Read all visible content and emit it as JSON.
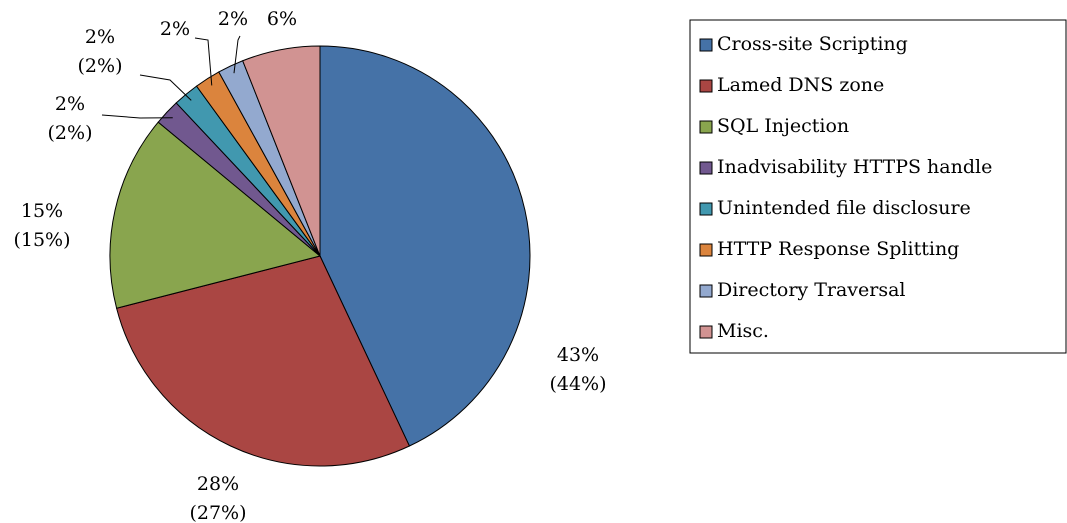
{
  "chart_data": {
    "type": "pie",
    "categories": [
      "Cross-site Scripting",
      "Lamed DNS zone",
      "SQL Injection",
      "Inadvisability HTTPS handle",
      "Unintended file disclosure",
      "HTTP Response Splitting",
      "Directory Traversal",
      "Misc."
    ],
    "values": [
      43,
      28,
      15,
      2,
      2,
      2,
      2,
      6
    ],
    "value_labels": [
      "43%\n(44%)",
      "28%\n(27%)",
      "15%\n(15%)",
      "2%\n(2%)",
      "2%\n(2%)",
      "2%",
      "2%",
      "6%"
    ],
    "colors": [
      "#4572a7",
      "#aa4643",
      "#89a54e",
      "#71588f",
      "#4198af",
      "#db843d",
      "#93a9cf",
      "#d19392"
    ],
    "legend": "right"
  }
}
